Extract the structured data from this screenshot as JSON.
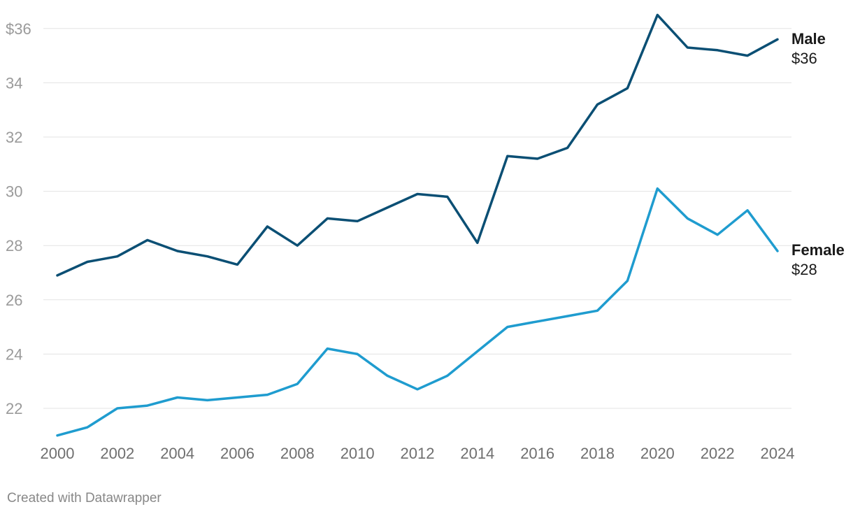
{
  "chart_data": {
    "type": "line",
    "title": "",
    "xlabel": "",
    "ylabel": "",
    "ylim": [
      21,
      36.5
    ],
    "y_ticks": [
      22,
      24,
      26,
      28,
      30,
      32,
      34,
      36
    ],
    "y_tick_labels": [
      "22",
      "24",
      "26",
      "28",
      "30",
      "32",
      "34",
      "$36"
    ],
    "x": [
      2000,
      2001,
      2002,
      2003,
      2004,
      2005,
      2006,
      2007,
      2008,
      2009,
      2010,
      2011,
      2012,
      2013,
      2014,
      2015,
      2016,
      2017,
      2018,
      2019,
      2020,
      2021,
      2022,
      2023,
      2024
    ],
    "x_ticks": [
      "2000",
      "2002",
      "2004",
      "2006",
      "2008",
      "2010",
      "2012",
      "2014",
      "2016",
      "2018",
      "2020",
      "2022",
      "2024"
    ],
    "series": [
      {
        "name": "Male",
        "end_label": "$36",
        "color": "#0b4f74",
        "values": [
          26.9,
          27.4,
          27.6,
          28.2,
          27.8,
          27.6,
          27.3,
          28.7,
          28.0,
          29.0,
          28.9,
          29.4,
          29.9,
          29.8,
          28.1,
          31.3,
          31.2,
          31.6,
          33.2,
          33.8,
          36.5,
          35.3,
          35.2,
          35.0,
          35.6
        ]
      },
      {
        "name": "Female",
        "end_label": "$28",
        "color": "#1f9ccf",
        "values": [
          21.0,
          21.3,
          22.0,
          22.1,
          22.4,
          22.3,
          22.4,
          22.5,
          22.9,
          24.2,
          24.0,
          23.2,
          22.7,
          23.2,
          24.1,
          25.0,
          25.2,
          25.4,
          25.6,
          26.7,
          30.1,
          29.0,
          28.4,
          29.3,
          27.8
        ]
      }
    ]
  },
  "footer": {
    "credit": "Created with Datawrapper"
  }
}
